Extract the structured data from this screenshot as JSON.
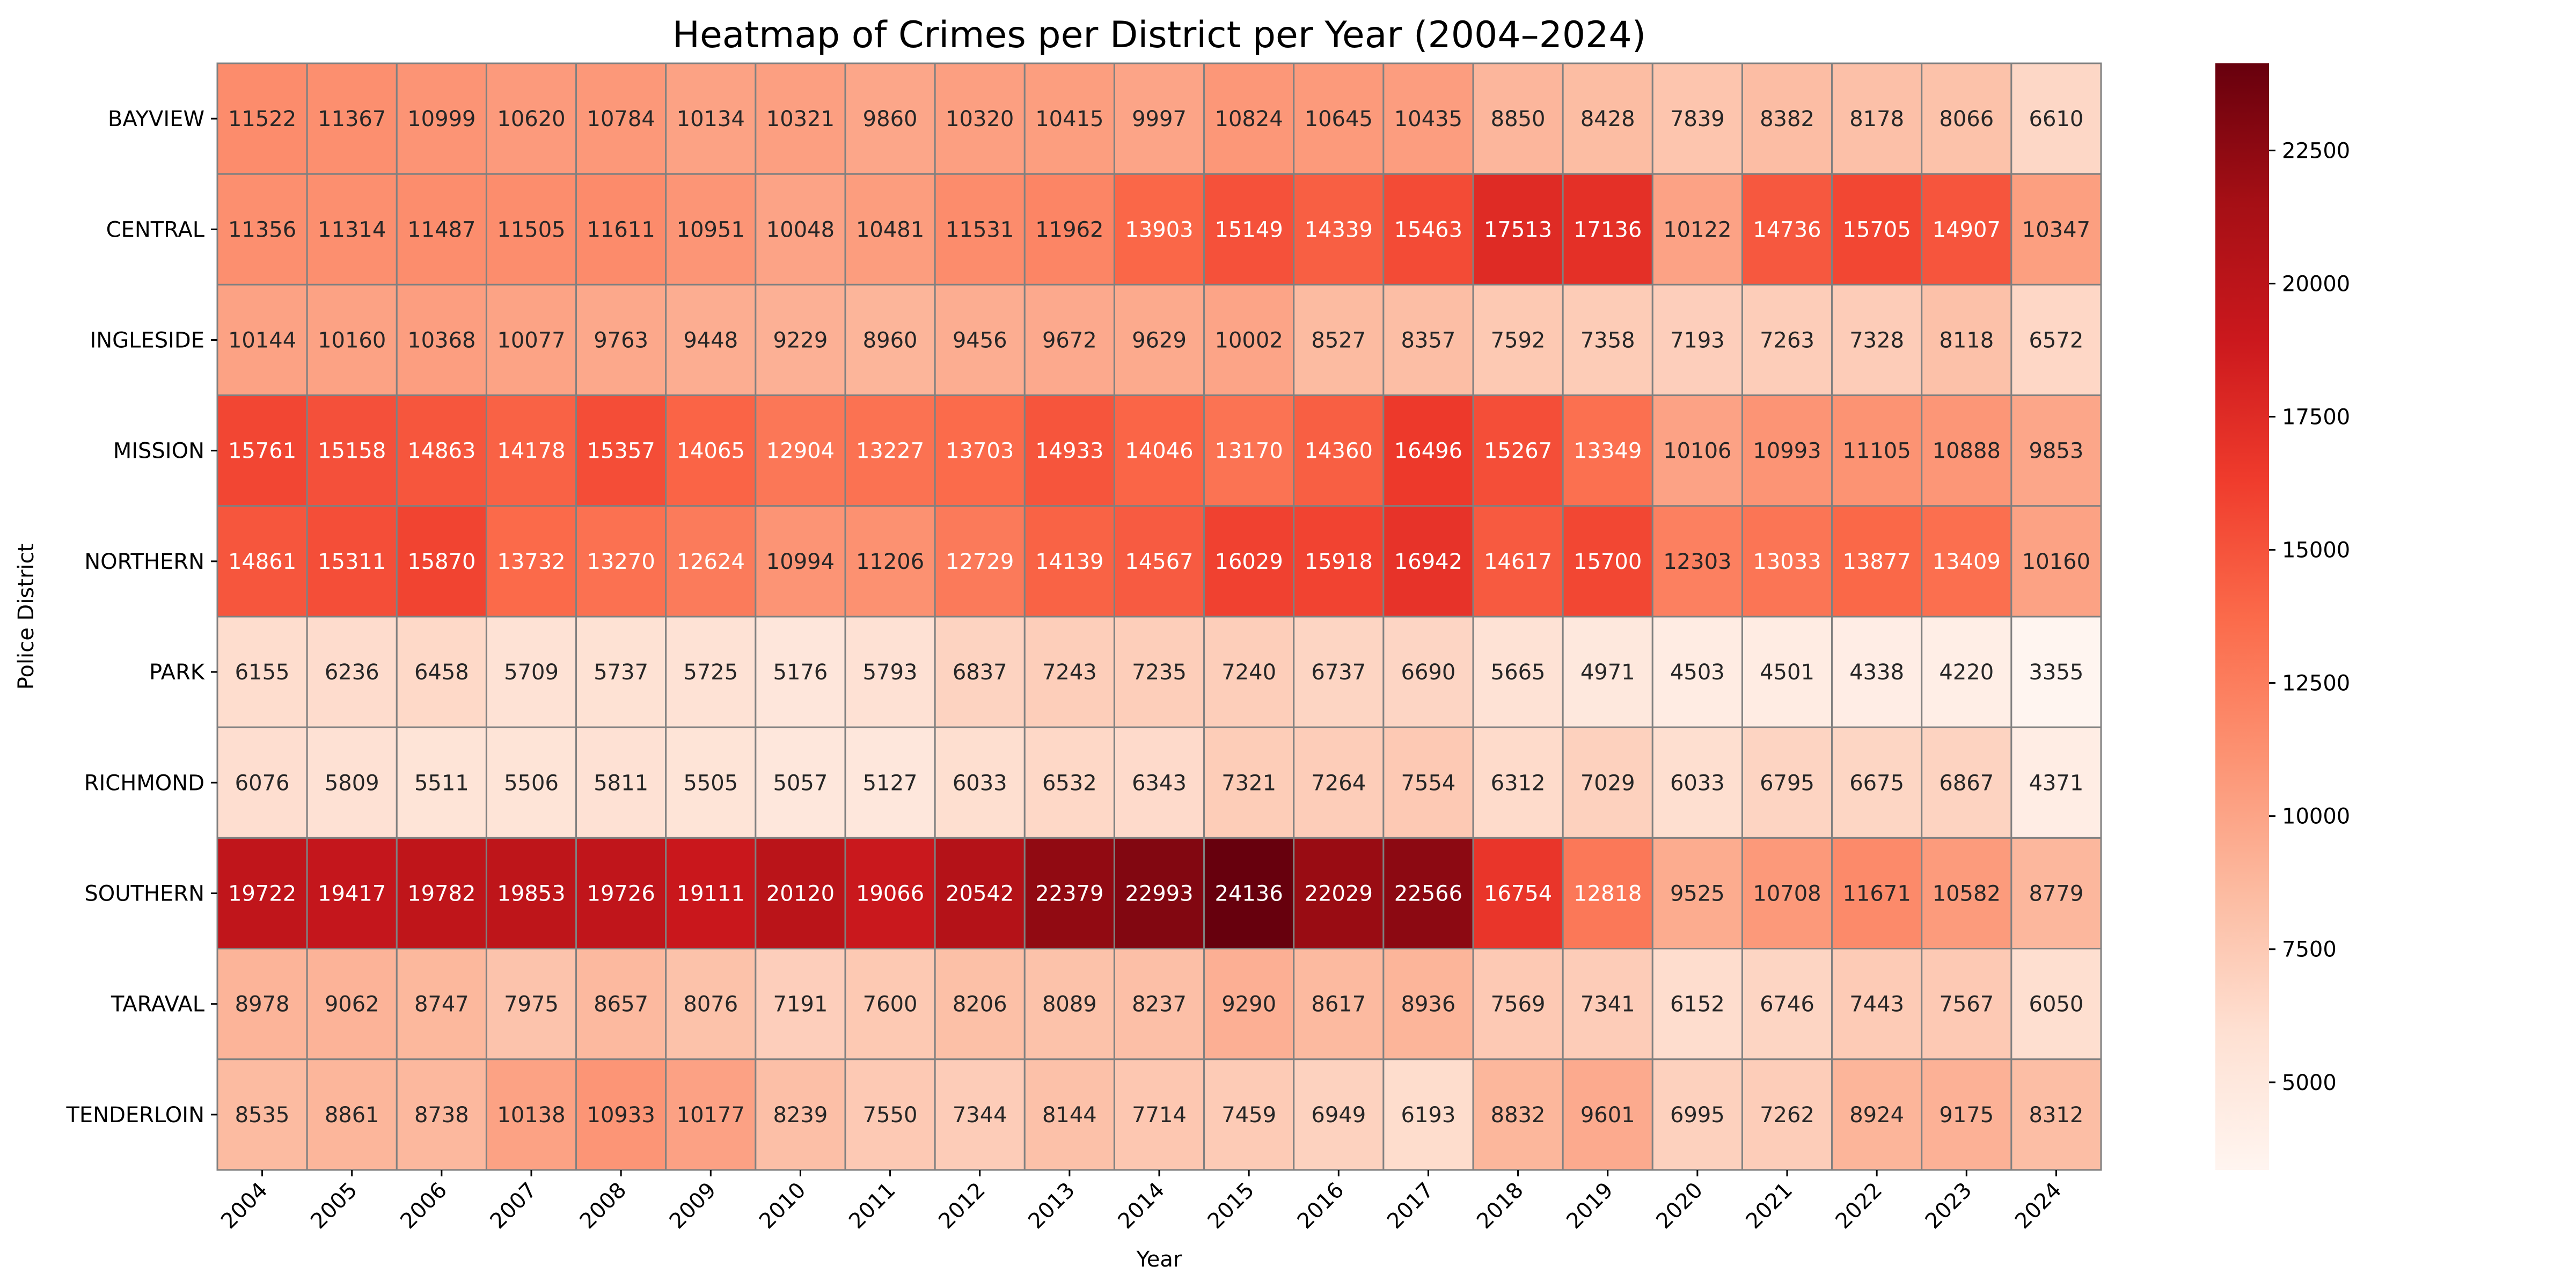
{
  "chart_data": {
    "type": "heatmap",
    "title": "Heatmap of Crimes per District per Year (2004–2024)",
    "xlabel": "Year",
    "ylabel": "Police District",
    "x": [
      "2004",
      "2005",
      "2006",
      "2007",
      "2008",
      "2009",
      "2010",
      "2011",
      "2012",
      "2013",
      "2014",
      "2015",
      "2016",
      "2017",
      "2018",
      "2019",
      "2020",
      "2021",
      "2022",
      "2023",
      "2024"
    ],
    "y": [
      "BAYVIEW",
      "CENTRAL",
      "INGLESIDE",
      "MISSION",
      "NORTHERN",
      "PARK",
      "RICHMOND",
      "SOUTHERN",
      "TARAVAL",
      "TENDERLOIN"
    ],
    "values": [
      [
        11522,
        11367,
        10999,
        10620,
        10784,
        10134,
        10321,
        9860,
        10320,
        10415,
        9997,
        10824,
        10645,
        10435,
        8850,
        8428,
        7839,
        8382,
        8178,
        8066,
        6610
      ],
      [
        11356,
        11314,
        11487,
        11505,
        11611,
        10951,
        10048,
        10481,
        11531,
        11962,
        13903,
        15149,
        14339,
        15463,
        17513,
        17136,
        10122,
        14736,
        15705,
        14907,
        10347
      ],
      [
        10144,
        10160,
        10368,
        10077,
        9763,
        9448,
        9229,
        8960,
        9456,
        9672,
        9629,
        10002,
        8527,
        8357,
        7592,
        7358,
        7193,
        7263,
        7328,
        8118,
        6572
      ],
      [
        15761,
        15158,
        14863,
        14178,
        15357,
        14065,
        12904,
        13227,
        13703,
        14933,
        14046,
        13170,
        14360,
        16496,
        15267,
        13349,
        10106,
        10993,
        11105,
        10888,
        9853
      ],
      [
        14861,
        15311,
        15870,
        13732,
        13270,
        12624,
        10994,
        11206,
        12729,
        14139,
        14567,
        16029,
        15918,
        16942,
        14617,
        15700,
        12303,
        13033,
        13877,
        13409,
        10160
      ],
      [
        6155,
        6236,
        6458,
        5709,
        5737,
        5725,
        5176,
        5793,
        6837,
        7243,
        7235,
        7240,
        6737,
        6690,
        5665,
        4971,
        4503,
        4501,
        4338,
        4220,
        3355
      ],
      [
        6076,
        5809,
        5511,
        5506,
        5811,
        5505,
        5057,
        5127,
        6033,
        6532,
        6343,
        7321,
        7264,
        7554,
        6312,
        7029,
        6033,
        6795,
        6675,
        6867,
        4371
      ],
      [
        19722,
        19417,
        19782,
        19853,
        19726,
        19111,
        20120,
        19066,
        20542,
        22379,
        22993,
        24136,
        22029,
        22566,
        16754,
        12818,
        9525,
        10708,
        11671,
        10582,
        8779
      ],
      [
        8978,
        9062,
        8747,
        7975,
        8657,
        8076,
        7191,
        7600,
        8206,
        8089,
        8237,
        9290,
        8617,
        8936,
        7569,
        7341,
        6152,
        6746,
        7443,
        7567,
        6050
      ],
      [
        8535,
        8861,
        8738,
        10138,
        10933,
        10177,
        8239,
        7550,
        7344,
        8144,
        7714,
        7459,
        6949,
        6193,
        8832,
        9601,
        6995,
        7262,
        8924,
        9175,
        8312
      ]
    ],
    "colorscale": "Reds",
    "vmin": 3355,
    "vmax": 24136,
    "colorbar_ticks": [
      5000,
      7500,
      10000,
      12500,
      15000,
      17500,
      20000,
      22500
    ],
    "cell_border_color": "#808080",
    "annotated": true,
    "grid": false
  }
}
